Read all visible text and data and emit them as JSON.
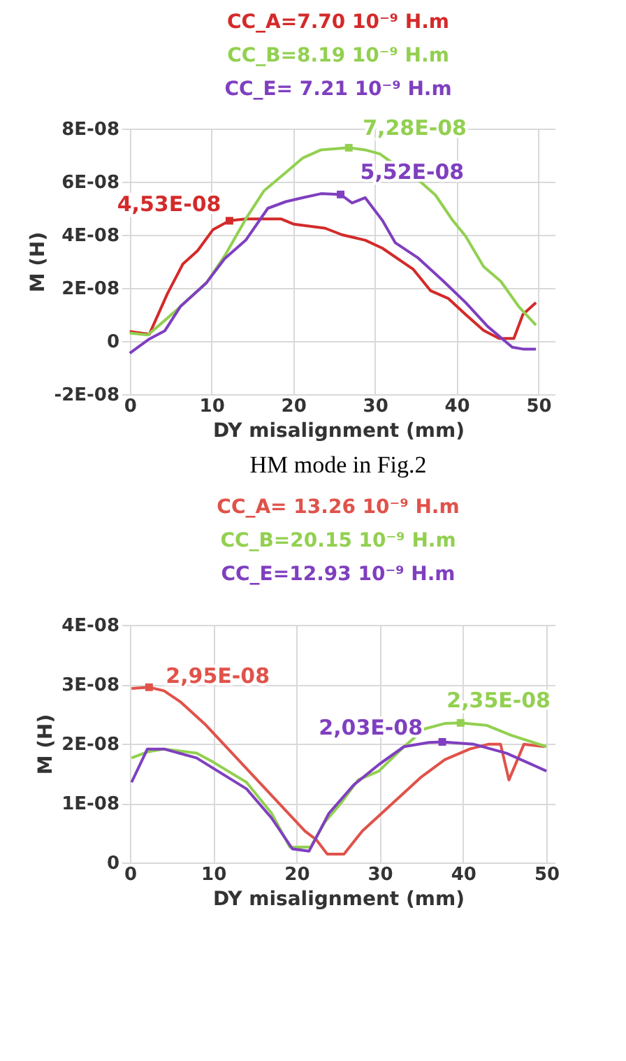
{
  "chart_data": [
    {
      "type": "line",
      "xlabel": "DY misalignment (mm)",
      "ylabel": "M (H)",
      "annotations": [
        "CC_A=7.70 10⁻⁹ H.m",
        "CC_B=8.19 10⁻⁹ H.m",
        "CC_E= 7.21 10⁻⁹ H.m",
        {
          "text": "4,53E-08",
          "x": 12.2,
          "y": 4.53e-08
        },
        {
          "text": "7,28E-08",
          "x": 26.8,
          "y": 7.28e-08
        },
        {
          "text": "5,52E-08",
          "x": 25.8,
          "y": 5.52e-08
        }
      ],
      "series": [
        {
          "color": "#d42a2a",
          "x": [
            0,
            2.4,
            4.6,
            6.5,
            8.3,
            10.2,
            12.2,
            14.2,
            18.5,
            20.1,
            23.9,
            26,
            28.8,
            30.9,
            34.7,
            36.8,
            39,
            41.1,
            43.3,
            45.2,
            47,
            48.1,
            49.7
          ],
          "values": [
            3.6e-09,
            2.6e-09,
            1.78e-08,
            2.9e-08,
            3.4e-08,
            4.2e-08,
            4.53e-08,
            4.6e-08,
            4.6e-08,
            4.4e-08,
            4.25e-08,
            4e-08,
            3.8e-08,
            3.5e-08,
            2.7e-08,
            1.9e-08,
            1.6e-08,
            1e-08,
            4e-09,
            1e-09,
            1e-09,
            1e-08,
            1.45e-08
          ]
        },
        {
          "color": "#92d050",
          "x": [
            0,
            2.2,
            4,
            6.2,
            9.4,
            11.6,
            14.2,
            16.4,
            19.1,
            21.2,
            23.4,
            26.8,
            28.8,
            30.6,
            33.1,
            35.2,
            37.4,
            39.5,
            41.1,
            43.3,
            45.4,
            47.6,
            49.7
          ],
          "values": [
            3e-09,
            2.3e-09,
            7e-09,
            1.3e-08,
            2.2e-08,
            3.2e-08,
            4.6e-08,
            5.65e-08,
            6.35e-08,
            6.9e-08,
            7.2e-08,
            7.28e-08,
            7.2e-08,
            7.05e-08,
            6.5e-08,
            6.1e-08,
            5.5e-08,
            4.55e-08,
            3.95e-08,
            2.8e-08,
            2.25e-08,
            1.3e-08,
            6e-09
          ]
        },
        {
          "color": "#7f3fbf",
          "x": [
            0,
            2.4,
            4.3,
            6.2,
            9.4,
            11.6,
            14.2,
            16.9,
            19.1,
            21.2,
            23.4,
            25.8,
            27.2,
            28.8,
            30.9,
            32.5,
            35.2,
            38.4,
            41.1,
            43.8,
            46.8,
            48.1,
            49.7
          ],
          "values": [
            -4.6e-09,
            8e-10,
            3.9e-09,
            1.3e-08,
            2.2e-08,
            3.1e-08,
            3.8e-08,
            5e-08,
            5.25e-08,
            5.4e-08,
            5.55e-08,
            5.52e-08,
            5.2e-08,
            5.4e-08,
            4.55e-08,
            3.7e-08,
            3.15e-08,
            2.25e-08,
            1.45e-08,
            5.5e-09,
            -2.3e-09,
            -3e-09,
            -3e-09
          ]
        }
      ],
      "xlim": [
        -1,
        52
      ],
      "xticks": [
        0,
        10,
        20,
        30,
        40,
        50
      ],
      "ylim": [
        -2e-08,
        8e-08
      ],
      "yticks": [
        {
          "value": -2e-08,
          "label": "-2E-08"
        },
        {
          "value": 0,
          "label": "0"
        },
        {
          "value": 2e-08,
          "label": "2E-08"
        },
        {
          "value": 4e-08,
          "label": "4E-08"
        },
        {
          "value": 6e-08,
          "label": "6E-08"
        },
        {
          "value": 8e-08,
          "label": "8E-08"
        }
      ],
      "grid": true
    },
    {
      "type": "line",
      "title": "HM mode in Fig.2",
      "xlabel": "DY misalignment (mm)",
      "ylabel": "M (H)",
      "annotations": [
        "CC_A= 13.26 10⁻⁹ H.m",
        "CC_B=20.15 10⁻⁹ H.m",
        "CC_E=12.93 10⁻⁹ H.m",
        {
          "text": "2,95E-08",
          "x": 2.3,
          "y": 2.95e-08
        },
        {
          "text": "2,35E-08",
          "x": 39.7,
          "y": 2.35e-08
        },
        {
          "text": "2,03E-08",
          "x": 37.5,
          "y": 2.03e-08
        }
      ],
      "series": [
        {
          "color": "#e0524a",
          "x": [
            0.2,
            2.3,
            4.1,
            6.1,
            9,
            12,
            15,
            18,
            21,
            22.4,
            23.7,
            25.7,
            27.9,
            31.4,
            34.9,
            37.8,
            40.8,
            43,
            44.5,
            45.5,
            47.3,
            49.8
          ],
          "values": [
            2.93e-08,
            2.95e-08,
            2.89e-08,
            2.7e-08,
            2.33e-08,
            1.88e-08,
            1.43e-08,
            9.8e-09,
            5.3e-09,
            3.8e-09,
            1.4e-09,
            1.4e-09,
            5.3e-09,
            9.8e-09,
            1.43e-08,
            1.73e-08,
            1.91e-08,
            1.99e-08,
            1.99e-08,
            1.39e-08,
            1.99e-08,
            1.95e-08
          ]
        },
        {
          "color": "#92d050",
          "x": [
            0.2,
            2.1,
            4.1,
            8,
            10,
            14,
            17,
            19.2,
            21.7,
            23.4,
            25.4,
            27.4,
            29.9,
            32.9,
            35.4,
            37.8,
            39.7,
            42.8,
            45.8,
            50
          ],
          "values": [
            1.76e-08,
            1.86e-08,
            1.91e-08,
            1.84e-08,
            1.69e-08,
            1.35e-08,
            8.3e-09,
            2.6e-09,
            2.6e-09,
            6.8e-09,
            1.01e-08,
            1.39e-08,
            1.54e-08,
            1.95e-08,
            2.25e-08,
            2.34e-08,
            2.35e-08,
            2.31e-08,
            2.14e-08,
            1.95e-08
          ]
        },
        {
          "color": "#7f3fbf",
          "x": [
            0.2,
            2.1,
            4.1,
            8,
            14,
            17,
            19.5,
            21.5,
            23.9,
            26.9,
            29.9,
            32.9,
            35.9,
            37.5,
            41.3,
            45.2,
            50
          ],
          "values": [
            1.35e-08,
            1.91e-08,
            1.91e-08,
            1.76e-08,
            1.24e-08,
            7.5e-09,
            2.3e-09,
            1.9e-09,
            8.3e-09,
            1.31e-08,
            1.65e-08,
            1.95e-08,
            2.02e-08,
            2.03e-08,
            1.99e-08,
            1.84e-08,
            1.54e-08
          ]
        }
      ],
      "xlim": [
        -1,
        51
      ],
      "xticks": [
        0,
        10,
        20,
        30,
        40,
        50
      ],
      "ylim": [
        0,
        4e-08
      ],
      "yticks": [
        {
          "value": 0,
          "label": "0"
        },
        {
          "value": 1e-08,
          "label": "1E-08"
        },
        {
          "value": 2e-08,
          "label": "2E-08"
        },
        {
          "value": 3e-08,
          "label": "3E-08"
        },
        {
          "value": 4e-08,
          "label": "4E-08"
        }
      ],
      "grid": true
    }
  ]
}
